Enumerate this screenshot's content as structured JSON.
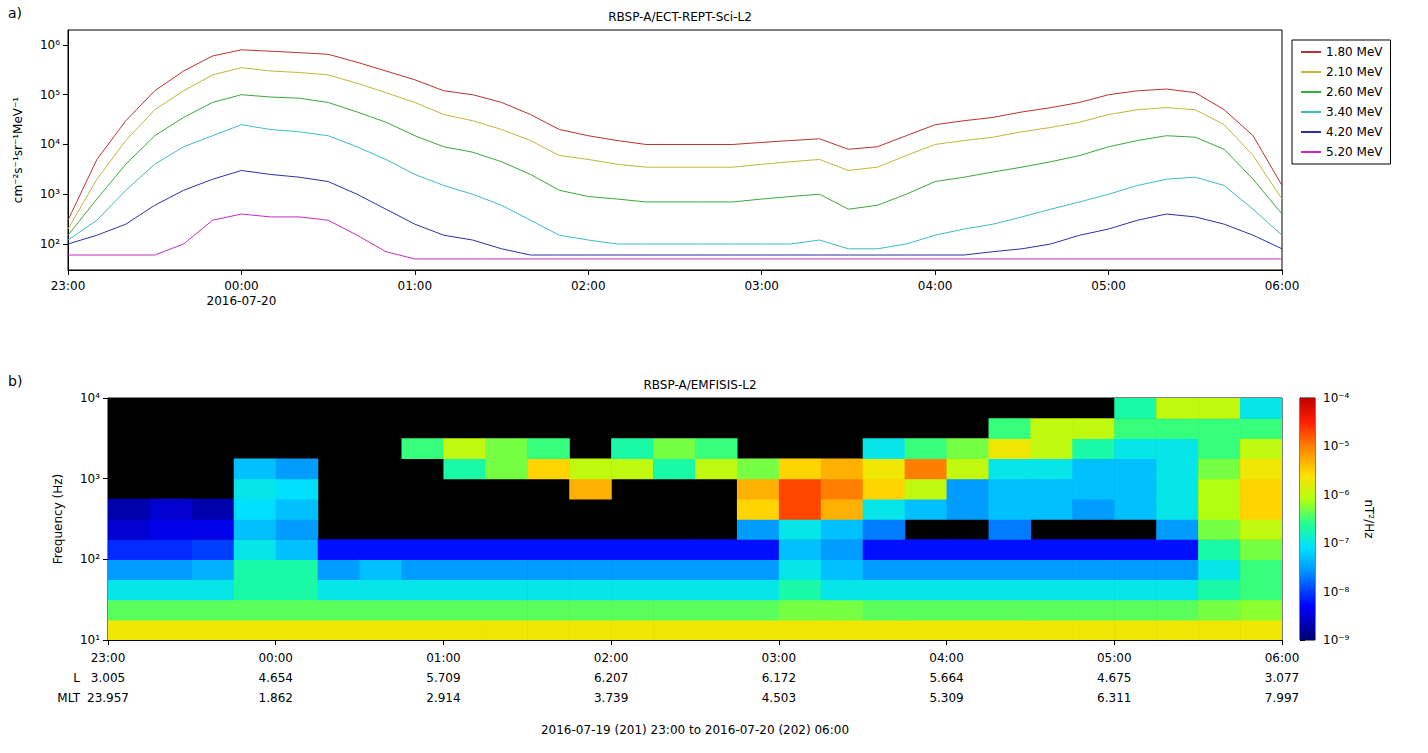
{
  "chart_data": [
    {
      "type": "line",
      "panel_label": "a)",
      "title": "RBSP-A/ECT-REPT-Sci-L2",
      "y_label": "cm⁻²s⁻¹sr⁻¹MeV⁻¹",
      "log": "y",
      "grid": false,
      "legend": "right",
      "x": [
        "2016-07-19 23:00",
        "2016-07-19 23:10",
        "2016-07-19 23:20",
        "2016-07-19 23:30",
        "2016-07-19 23:40",
        "2016-07-19 23:50",
        "2016-07-20 00:00",
        "2016-07-20 00:10",
        "2016-07-20 00:20",
        "2016-07-20 00:30",
        "2016-07-20 00:40",
        "2016-07-20 00:50",
        "2016-07-20 01:00",
        "2016-07-20 01:10",
        "2016-07-20 01:20",
        "2016-07-20 01:30",
        "2016-07-20 01:40",
        "2016-07-20 01:50",
        "2016-07-20 02:00",
        "2016-07-20 02:10",
        "2016-07-20 02:20",
        "2016-07-20 02:30",
        "2016-07-20 02:40",
        "2016-07-20 02:50",
        "2016-07-20 03:00",
        "2016-07-20 03:10",
        "2016-07-20 03:20",
        "2016-07-20 03:30",
        "2016-07-20 03:40",
        "2016-07-20 03:50",
        "2016-07-20 04:00",
        "2016-07-20 04:10",
        "2016-07-20 04:20",
        "2016-07-20 04:30",
        "2016-07-20 04:40",
        "2016-07-20 04:50",
        "2016-07-20 05:00",
        "2016-07-20 05:10",
        "2016-07-20 05:20",
        "2016-07-20 05:30",
        "2016-07-20 05:40",
        "2016-07-20 05:50",
        "2016-07-20 06:00"
      ],
      "xlim": [
        "2016-07-19 23:00",
        "2016-07-20 06:00"
      ],
      "xticks": [
        {
          "value": "2016-07-19 23:00",
          "label": "23:00"
        },
        {
          "value": "2016-07-20 00:00",
          "label": "00:00\n2016-07-20"
        },
        {
          "value": "2016-07-20 01:00",
          "label": "01:00"
        },
        {
          "value": "2016-07-20 02:00",
          "label": "02:00"
        },
        {
          "value": "2016-07-20 03:00",
          "label": "03:00"
        },
        {
          "value": "2016-07-20 04:00",
          "label": "04:00"
        },
        {
          "value": "2016-07-20 05:00",
          "label": "05:00"
        },
        {
          "value": "2016-07-20 06:00",
          "label": "06:00"
        }
      ],
      "ylim": [
        30,
        2000000
      ],
      "yticks": [
        {
          "value": 100,
          "label": "10²"
        },
        {
          "value": 1000,
          "label": "10³"
        },
        {
          "value": 10000,
          "label": "10⁴"
        },
        {
          "value": 100000,
          "label": "10⁵"
        },
        {
          "value": 1000000,
          "label": "10⁶"
        }
      ],
      "series": [
        {
          "name": "1.80 MeV",
          "color": "#b8322f",
          "values": [
            300,
            5000,
            30000,
            120000,
            300000,
            600000,
            800000,
            750000,
            700000,
            650000,
            450000,
            300000,
            200000,
            120000,
            100000,
            70000,
            40000,
            20000,
            15000,
            12000,
            10000,
            10000,
            10000,
            10000,
            11000,
            12000,
            13000,
            8000,
            9000,
            15000,
            25000,
            30000,
            35000,
            45000,
            55000,
            70000,
            100000,
            120000,
            130000,
            110000,
            50000,
            15000,
            1500
          ]
        },
        {
          "name": "2.10 MeV",
          "color": "#c2b43a",
          "values": [
            200,
            2000,
            12000,
            50000,
            120000,
            250000,
            350000,
            300000,
            280000,
            250000,
            170000,
            110000,
            70000,
            40000,
            30000,
            20000,
            12000,
            6000,
            5000,
            4000,
            3500,
            3500,
            3500,
            3500,
            4000,
            4500,
            5000,
            3000,
            3500,
            6000,
            10000,
            12000,
            14000,
            18000,
            22000,
            28000,
            40000,
            50000,
            55000,
            50000,
            25000,
            6000,
            800
          ]
        },
        {
          "name": "2.60 MeV",
          "color": "#3aa83a",
          "values": [
            150,
            800,
            4000,
            15000,
            35000,
            70000,
            100000,
            90000,
            85000,
            70000,
            45000,
            28000,
            15000,
            9000,
            7000,
            4500,
            2500,
            1200,
            900,
            800,
            700,
            700,
            700,
            700,
            800,
            900,
            1000,
            500,
            600,
            1000,
            1800,
            2200,
            2800,
            3500,
            4500,
            6000,
            9000,
            12000,
            15000,
            14000,
            8000,
            2000,
            400
          ]
        },
        {
          "name": "3.40 MeV",
          "color": "#3dbcc0",
          "values": [
            120,
            300,
            1200,
            4000,
            9000,
            15000,
            25000,
            20000,
            18000,
            15000,
            9000,
            5000,
            2500,
            1500,
            1000,
            600,
            300,
            150,
            120,
            100,
            100,
            100,
            100,
            100,
            100,
            100,
            120,
            80,
            80,
            100,
            150,
            200,
            250,
            350,
            500,
            700,
            1000,
            1500,
            2000,
            2200,
            1500,
            500,
            150
          ]
        },
        {
          "name": "4.20 MeV",
          "color": "#2f2fa8",
          "values": [
            100,
            150,
            250,
            600,
            1200,
            2000,
            3000,
            2500,
            2200,
            1800,
            1000,
            500,
            250,
            150,
            120,
            80,
            60,
            60,
            60,
            60,
            60,
            60,
            60,
            60,
            60,
            60,
            60,
            60,
            60,
            60,
            60,
            60,
            70,
            80,
            100,
            150,
            200,
            300,
            400,
            350,
            250,
            150,
            80
          ]
        },
        {
          "name": "5.20 MeV",
          "color": "#c22fc2",
          "values": [
            60,
            60,
            60,
            60,
            100,
            300,
            400,
            350,
            350,
            300,
            150,
            70,
            50,
            50,
            50,
            50,
            50,
            50,
            50,
            50,
            50,
            50,
            50,
            50,
            50,
            50,
            50,
            50,
            50,
            50,
            50,
            50,
            50,
            50,
            50,
            50,
            50,
            50,
            50,
            50,
            50,
            50,
            50
          ]
        }
      ]
    },
    {
      "type": "heatmap",
      "panel_label": "b)",
      "title": "RBSP-A/EMFISIS-L2",
      "y_label": "Frequency (Hz)",
      "log": "y",
      "grid": false,
      "xlim": [
        "2016-07-19 23:00",
        "2016-07-20 06:00"
      ],
      "xticks": [
        {
          "value": "2016-07-19 23:00",
          "label": "23:00"
        },
        {
          "value": "2016-07-20 00:00",
          "label": "00:00"
        },
        {
          "value": "2016-07-20 01:00",
          "label": "01:00"
        },
        {
          "value": "2016-07-20 02:00",
          "label": "02:00"
        },
        {
          "value": "2016-07-20 03:00",
          "label": "03:00"
        },
        {
          "value": "2016-07-20 04:00",
          "label": "04:00"
        },
        {
          "value": "2016-07-20 05:00",
          "label": "05:00"
        },
        {
          "value": "2016-07-20 06:00",
          "label": "06:00"
        }
      ],
      "x_rows": [
        {
          "label": "L",
          "values": [
            3.005,
            4.654,
            5.709,
            6.207,
            6.172,
            5.664,
            4.675,
            3.077
          ]
        },
        {
          "label": "MLT",
          "values": [
            23.957,
            1.862,
            2.914,
            3.739,
            4.503,
            5.309,
            6.311,
            7.997
          ]
        }
      ],
      "caption": "2016-07-19 (201) 23:00 to 2016-07-20 (202) 06:00",
      "ylim": [
        10,
        10000
      ],
      "yticks": [
        {
          "value": 10,
          "label": "10¹"
        },
        {
          "value": 100,
          "label": "10²"
        },
        {
          "value": 1000,
          "label": "10³"
        },
        {
          "value": 10000,
          "label": "10⁴"
        }
      ],
      "cells": {
        "x": [
          "2016-07-19 23:00",
          "2016-07-19 23:15",
          "2016-07-19 23:30",
          "2016-07-19 23:45",
          "2016-07-20 00:00",
          "2016-07-20 00:15",
          "2016-07-20 00:30",
          "2016-07-20 00:45",
          "2016-07-20 01:00",
          "2016-07-20 01:15",
          "2016-07-20 01:30",
          "2016-07-20 01:45",
          "2016-07-20 02:00",
          "2016-07-20 02:15",
          "2016-07-20 02:30",
          "2016-07-20 02:45",
          "2016-07-20 03:00",
          "2016-07-20 03:15",
          "2016-07-20 03:30",
          "2016-07-20 03:45",
          "2016-07-20 04:00",
          "2016-07-20 04:15",
          "2016-07-20 04:30",
          "2016-07-20 04:45",
          "2016-07-20 05:00",
          "2016-07-20 05:15",
          "2016-07-20 05:30",
          "2016-07-20 05:45",
          "2016-07-20 06:00"
        ],
        "y": [
          10,
          17.8,
          31.6,
          56.2,
          100,
          178,
          316,
          562,
          1000,
          1780,
          3160,
          5620,
          10000
        ],
        "values": [
          [
            2e-06,
            4e-07,
            1e-07,
            3e-08,
            8e-09,
            3e-09,
            2e-09,
            null,
            null,
            null,
            null,
            null
          ],
          [
            2e-06,
            4e-07,
            1e-07,
            3e-08,
            8e-09,
            4e-09,
            3e-09,
            null,
            null,
            null,
            null,
            null
          ],
          [
            2e-06,
            4e-07,
            1e-07,
            4e-08,
            1e-08,
            4e-09,
            2e-09,
            null,
            null,
            null,
            null,
            null
          ],
          [
            2e-06,
            4e-07,
            2e-07,
            2e-07,
            1e-07,
            5e-08,
            8e-08,
            1e-07,
            5e-08,
            null,
            null,
            null
          ],
          [
            2e-06,
            4e-07,
            2e-07,
            2e-07,
            5e-08,
            3e-08,
            5e-08,
            8e-08,
            3e-08,
            null,
            null,
            null
          ],
          [
            2e-06,
            4e-07,
            1e-07,
            3e-08,
            6e-09,
            null,
            null,
            null,
            null,
            null,
            null,
            null
          ],
          [
            2e-06,
            4e-07,
            1e-07,
            5e-08,
            6e-09,
            null,
            null,
            null,
            null,
            null,
            null,
            null
          ],
          [
            2e-06,
            4e-07,
            1e-07,
            3e-08,
            6e-09,
            null,
            null,
            null,
            null,
            3e-07,
            null,
            null
          ],
          [
            2e-06,
            4e-07,
            1e-07,
            3e-08,
            6e-09,
            null,
            null,
            null,
            2e-07,
            1e-06,
            null,
            null
          ],
          [
            2e-06,
            4e-07,
            1e-07,
            3e-08,
            6e-09,
            null,
            null,
            null,
            5e-07,
            5e-07,
            null,
            null
          ],
          [
            2e-06,
            4e-07,
            1e-07,
            3e-08,
            6e-09,
            null,
            null,
            null,
            3e-06,
            3e-07,
            null,
            null
          ],
          [
            2e-06,
            4e-07,
            1e-07,
            3e-08,
            6e-09,
            null,
            null,
            5e-06,
            1e-06,
            null,
            null,
            null
          ],
          [
            2e-06,
            4e-07,
            1e-07,
            3e-08,
            6e-09,
            null,
            null,
            null,
            1e-06,
            2e-07,
            null,
            null
          ],
          [
            2e-06,
            4e-07,
            1e-07,
            3e-08,
            6e-09,
            null,
            null,
            null,
            2e-07,
            5e-07,
            null,
            null
          ],
          [
            2e-06,
            4e-07,
            1e-07,
            3e-08,
            6e-09,
            null,
            null,
            null,
            1e-06,
            3e-07,
            null,
            null
          ],
          [
            2e-06,
            4e-07,
            1e-07,
            3e-08,
            6e-09,
            3e-08,
            3e-06,
            5e-06,
            5e-07,
            null,
            null,
            null
          ],
          [
            2e-06,
            5e-07,
            2e-07,
            1e-07,
            5e-08,
            1e-07,
            2e-05,
            2e-05,
            3e-06,
            null,
            null,
            null
          ],
          [
            2e-06,
            5e-07,
            1e-07,
            5e-08,
            3e-08,
            5e-08,
            5e-06,
            1e-05,
            5e-06,
            null,
            null,
            null
          ],
          [
            2e-06,
            4e-07,
            1e-07,
            3e-08,
            6e-09,
            2e-08,
            1e-07,
            3e-06,
            2e-06,
            1e-07,
            null,
            null
          ],
          [
            2e-06,
            4e-07,
            1e-07,
            3e-08,
            6e-09,
            null,
            5e-08,
            1e-06,
            1e-05,
            3e-07,
            null,
            null
          ],
          [
            2e-06,
            4e-07,
            1e-07,
            3e-08,
            6e-09,
            null,
            3e-08,
            3e-08,
            1e-06,
            5e-07,
            null,
            null
          ],
          [
            2e-06,
            4e-07,
            1e-07,
            3e-08,
            6e-09,
            2e-08,
            5e-08,
            5e-08,
            1e-07,
            2e-06,
            3e-07,
            null
          ],
          [
            2e-06,
            4e-07,
            1e-07,
            3e-08,
            6e-09,
            null,
            5e-08,
            5e-08,
            1e-07,
            1e-06,
            1e-06,
            null
          ],
          [
            2e-06,
            4e-07,
            1e-07,
            3e-08,
            6e-09,
            null,
            3e-08,
            5e-08,
            5e-08,
            2e-07,
            1e-06,
            null
          ],
          [
            2e-06,
            4e-07,
            1e-07,
            3e-08,
            6e-09,
            null,
            5e-08,
            5e-08,
            5e-08,
            1e-07,
            3e-07,
            2e-07
          ],
          [
            2e-06,
            4e-07,
            1e-07,
            3e-08,
            6e-09,
            3e-08,
            1e-07,
            1e-07,
            1e-07,
            1e-07,
            3e-07,
            1e-06
          ],
          [
            2e-06,
            5e-07,
            2e-07,
            1e-07,
            2e-07,
            5e-07,
            8e-07,
            8e-07,
            5e-07,
            3e-07,
            3e-07,
            1e-06
          ],
          [
            2e-06,
            6e-07,
            3e-07,
            3e-07,
            5e-07,
            1e-06,
            3e-06,
            3e-06,
            2e-06,
            1e-06,
            3e-07,
            1e-07
          ]
        ]
      },
      "colorbar": {
        "label": "nT²/Hz",
        "log": true,
        "lim": [
          1e-09,
          0.0001
        ],
        "ticks": [
          {
            "value": 1e-09,
            "label": "10⁻⁹"
          },
          {
            "value": 1e-08,
            "label": "10⁻⁸"
          },
          {
            "value": 1e-07,
            "label": "10⁻⁷"
          },
          {
            "value": 1e-06,
            "label": "10⁻⁶"
          },
          {
            "value": 1e-05,
            "label": "10⁻⁵"
          },
          {
            "value": 0.0001,
            "label": "10⁻⁴"
          }
        ]
      }
    }
  ]
}
